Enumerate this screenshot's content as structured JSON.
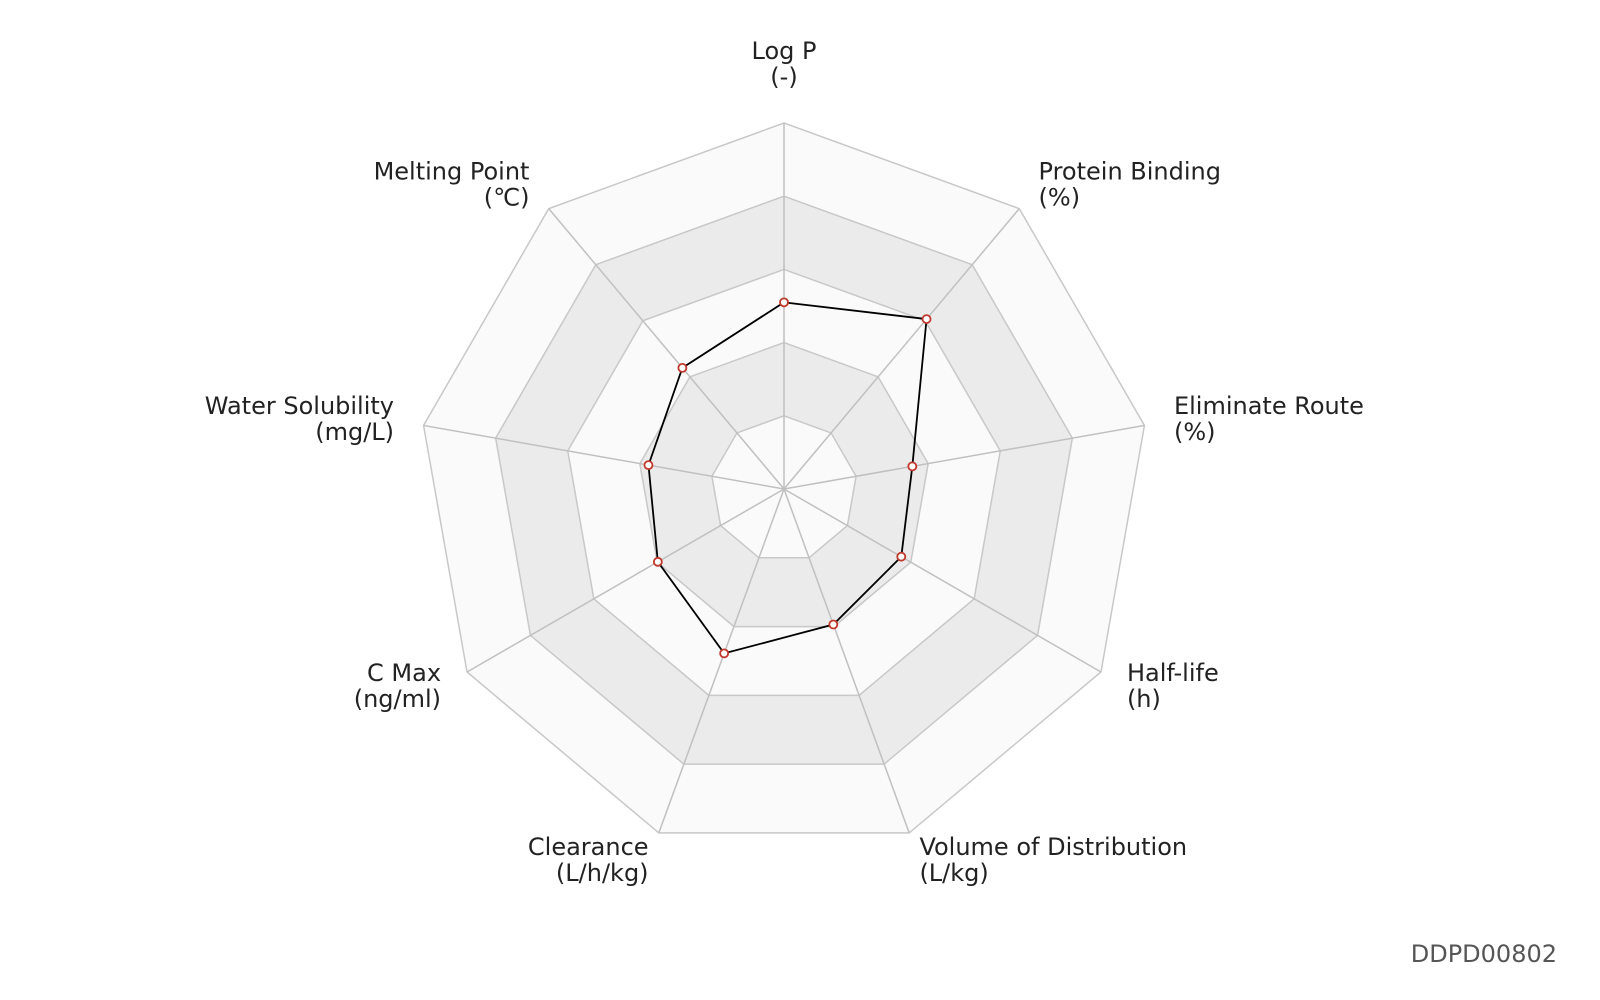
{
  "chart_data": {
    "type": "radar",
    "categories": [
      "Log P",
      "Protein Binding",
      "Eliminate Route",
      "Half-life",
      "Volume of Distribution",
      "Clearance",
      "C Max",
      "Water Solubility",
      "Melting Point"
    ],
    "units": [
      "(-)",
      "(%)",
      "(%)",
      "(h)",
      "(L/kg)",
      "(L/h/kg)",
      "(ng/ml)",
      "(mg/L)",
      "(℃)"
    ],
    "values": [
      2.55,
      3.03,
      1.78,
      1.85,
      1.97,
      2.39,
      1.99,
      1.88,
      2.16
    ],
    "rlim": [
      0,
      5
    ],
    "rticks": [
      1,
      2,
      3,
      4,
      5
    ],
    "color": "#000000",
    "marker_color": "#c0392b"
  },
  "footer": "DDPD00802"
}
